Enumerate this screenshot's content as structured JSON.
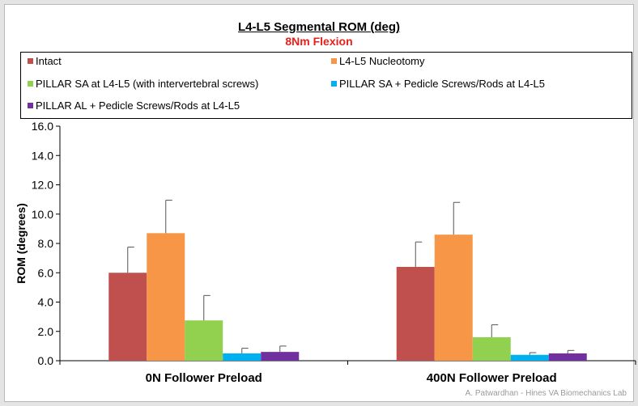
{
  "chart_data": {
    "type": "bar",
    "title": "L4-L5 Segmental ROM (deg)",
    "subtitle": "8Nm Flexion",
    "ylabel": "ROM (degrees)",
    "xlabel": "",
    "ylim": [
      0,
      16
    ],
    "yticks": [
      "0.0",
      "2.0",
      "4.0",
      "6.0",
      "8.0",
      "10.0",
      "12.0",
      "14.0",
      "16.0"
    ],
    "categories": [
      "0N Follower Preload",
      "400N Follower Preload"
    ],
    "series": [
      {
        "name": "Intact",
        "color": "#c0504d",
        "values": [
          6.0,
          6.4
        ],
        "errors": [
          1.75,
          1.7
        ]
      },
      {
        "name": "L4-L5 Nucleotomy",
        "color": "#f79646",
        "values": [
          8.7,
          8.6
        ],
        "errors": [
          2.25,
          2.2
        ]
      },
      {
        "name": "PILLAR SA at L4-L5 (with intervertebral screws)",
        "color": "#92d050",
        "values": [
          2.75,
          1.6
        ],
        "errors": [
          1.7,
          0.85
        ]
      },
      {
        "name": "PILLAR SA + Pedicle Screws/Rods at L4-L5",
        "color": "#00b0f0",
        "values": [
          0.5,
          0.4
        ],
        "errors": [
          0.35,
          0.15
        ]
      },
      {
        "name": "PILLAR AL + Pedicle Screws/Rods at L4-L5",
        "color": "#7030a0",
        "values": [
          0.6,
          0.5
        ],
        "errors": [
          0.4,
          0.2
        ]
      }
    ],
    "grid": false,
    "legend_position": "top"
  },
  "credit": "A. Patwardhan - Hines VA Biomechanics Lab"
}
